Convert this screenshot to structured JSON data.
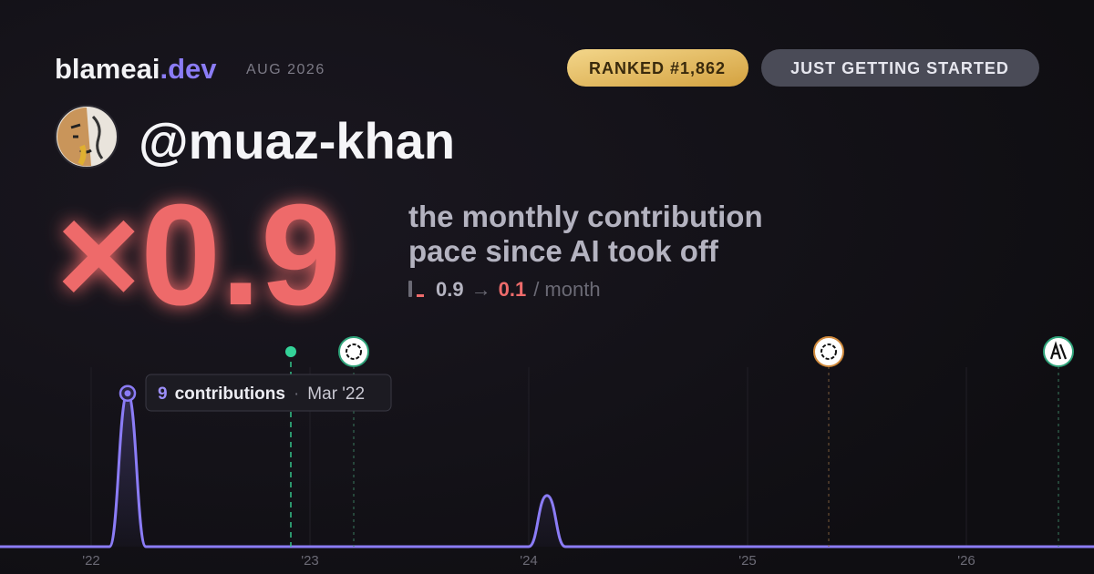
{
  "header": {
    "brand": "blameai",
    "brand_suffix": ".dev",
    "period": "AUG 2026",
    "rank": "RANKED #1,862",
    "status": "JUST GETTING STARTED"
  },
  "profile": {
    "handle": "@muaz-khan"
  },
  "headline": {
    "multiplier": "×0.9",
    "description": [
      "the monthly contribution",
      "pace since AI took off"
    ]
  },
  "pace": {
    "before": 0.9,
    "arrow": "→",
    "after": 0.1,
    "unit": "/ month"
  },
  "tooltip": {
    "unit": "contributions",
    "separator": "·",
    "date": "Mar '22"
  },
  "chart_data": {
    "type": "line",
    "categories": [
      null,
      null,
      null,
      null,
      null,
      "'22",
      null,
      null,
      null,
      null,
      null,
      null,
      null,
      null,
      null,
      null,
      null,
      "'23",
      null,
      null,
      null,
      null,
      null,
      null,
      null,
      null,
      null,
      null,
      null,
      "'24",
      null,
      null,
      null,
      null,
      null,
      null,
      null,
      null,
      null,
      null,
      null,
      "'25",
      null,
      null,
      null,
      null,
      null,
      null,
      null,
      null,
      null,
      null,
      null,
      "'26",
      null,
      null,
      null,
      null,
      null,
      null,
      null
    ],
    "series": [
      {
        "color": "#8b7cf6",
        "values": [
          0,
          0,
          0,
          0,
          0,
          0,
          0,
          9,
          0,
          0,
          0,
          0,
          0,
          0,
          0,
          0,
          0,
          0,
          0,
          0,
          0,
          0,
          0,
          0,
          0,
          0,
          0,
          0,
          0,
          0,
          3,
          0,
          0,
          0,
          0,
          0,
          0,
          0,
          0,
          0,
          0,
          0,
          0,
          0,
          0,
          0,
          0,
          0,
          0,
          0,
          0,
          0,
          0,
          0,
          0,
          0,
          0,
          0,
          0,
          0,
          0
        ]
      }
    ],
    "ylim": [
      0,
      10
    ],
    "grid": true
  }
}
